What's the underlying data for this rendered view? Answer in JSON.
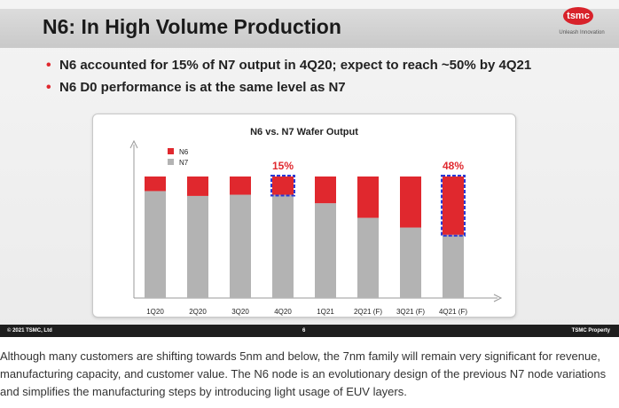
{
  "slide": {
    "title": "N6: In High Volume Production",
    "logo_text": "tsmc",
    "logo_tagline": "Unleash Innovation",
    "bullets": [
      "N6 accounted for 15% of N7 output in 4Q20; expect to reach ~50% by 4Q21",
      "N6 D0 performance is at the same level as N7"
    ],
    "footer": {
      "left": "© 2021 TSMC, Ltd",
      "center": "6",
      "right": "TSMC Property"
    }
  },
  "colors": {
    "n6": "#e0282e",
    "n7": "#b3b3b3",
    "highlight_box": "#2a3bd6"
  },
  "chart_data": {
    "type": "bar",
    "stacked": true,
    "normalized": true,
    "title": "N6 vs. N7 Wafer Output",
    "categories": [
      "1Q20",
      "2Q20",
      "3Q20",
      "4Q20",
      "1Q21",
      "2Q21 (F)",
      "3Q21 (F)",
      "4Q21 (F)"
    ],
    "series": [
      {
        "name": "N7",
        "values": [
          88,
          84,
          85,
          85,
          78,
          66,
          58,
          52
        ]
      },
      {
        "name": "N6",
        "values": [
          12,
          16,
          15,
          15,
          22,
          34,
          42,
          48
        ]
      }
    ],
    "legend": [
      "N6",
      "N7"
    ],
    "legend_position": "top-left",
    "annotations": [
      {
        "category": "4Q20",
        "label": "15%"
      },
      {
        "category": "4Q21 (F)",
        "label": "48%"
      }
    ],
    "ylim": [
      0,
      100
    ],
    "xlabel": "",
    "ylabel": ""
  },
  "caption": "Although many customers are shifting towards 5nm and below, the 7nm family will remain very significant for revenue, manufacturing capacity, and customer value. The N6 node is an evolutionary design of the previous N7 node variations and simplifies the manufacturing steps by introducing light usage of EUV layers."
}
